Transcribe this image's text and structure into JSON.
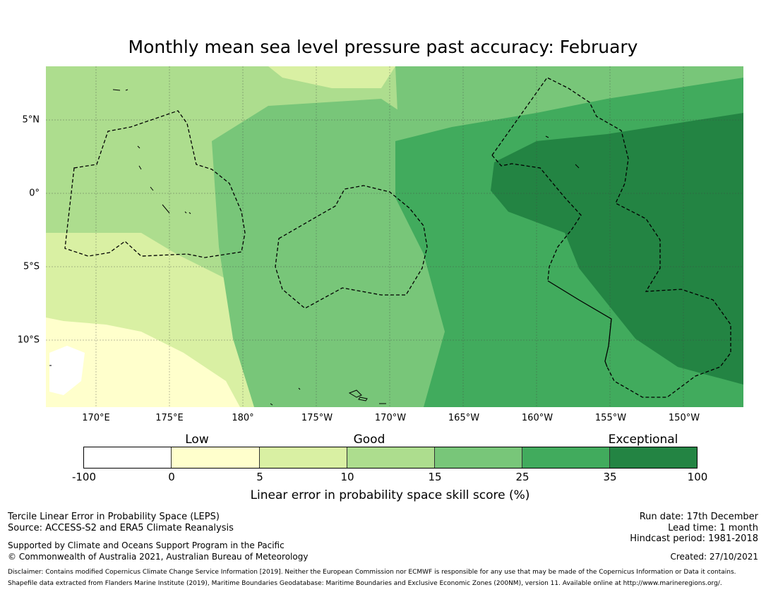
{
  "title": "Monthly mean sea level pressure past accuracy: February",
  "map": {
    "lon_labels": [
      "170°E",
      "175°E",
      "180°",
      "175°W",
      "170°W",
      "165°W",
      "160°W",
      "155°W",
      "150°W"
    ],
    "lat_labels": [
      "5°N",
      "0°",
      "5°S",
      "10°S"
    ],
    "colors": {
      "c1": "#ffffcc",
      "c2": "#d9f0a3",
      "c3": "#addd8e",
      "c4": "#78c679",
      "c5": "#41ab5d",
      "c6": "#238443"
    }
  },
  "colorbar": {
    "category_words": [
      "Low",
      "Good",
      "Exceptional"
    ],
    "ticks": [
      "-100",
      "0",
      "5",
      "10",
      "15",
      "25",
      "35",
      "100"
    ],
    "colors": [
      "#ffffff",
      "#ffffcc",
      "#d9f0a3",
      "#addd8e",
      "#78c679",
      "#41ab5d",
      "#238443"
    ],
    "label": "Linear error in probability space skill score (%)"
  },
  "footer": {
    "method": "Tercile Linear Error in Probability Space (LEPS)",
    "source": "Source: ACCESS-S2 and ERA5 Climate Reanalysis",
    "support": "Supported by Climate and Oceans Support Program in the Pacific",
    "copyright": "© Commonwealth of Australia 2021, Australian Bureau of Meteorology",
    "run_date": "Run date: 17th December",
    "lead_time": "Lead time: 1 month",
    "hindcast": "Hindcast period: 1981-2018",
    "created": "Created: 27/10/2021",
    "disclaimer": "Disclaimer: Contains modified Copernicus Climate Change Service Information [2019]. Neither the European Commission nor ECMWF is responsible for any use that may be made of the Copernicus Information or Data it contains.",
    "shapefile": "Shapefile data extracted from Flanders Marine Institute (2019), Maritime Boundaries Geodatabase: Maritime Boundaries and Exclusive Economic Zones (200NM), version 11. Available online at http://www.marineregions.org/."
  }
}
